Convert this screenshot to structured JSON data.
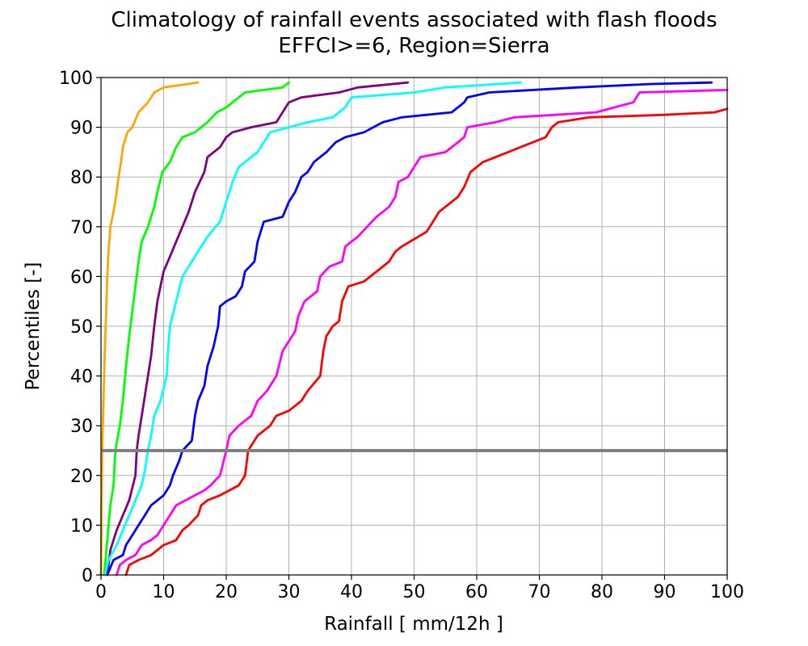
{
  "chart_data": {
    "type": "line",
    "title": "Climatology of rainfall events associated with flash floods",
    "subtitle": "EFFCI>=6, Region=Sierra",
    "xlabel": "Rainfall [ mm/12h ]",
    "ylabel": "Percentiles [-]",
    "xlim": [
      0,
      100
    ],
    "ylim": [
      0,
      100
    ],
    "xticks": [
      0,
      10,
      20,
      30,
      40,
      50,
      60,
      70,
      80,
      90,
      100
    ],
    "yticks": [
      0,
      10,
      20,
      30,
      40,
      50,
      60,
      70,
      80,
      90,
      100
    ],
    "grid": true,
    "reference_line": {
      "y": 25,
      "color": "#808080"
    },
    "series": [
      {
        "color": "#FFA500",
        "points": [
          [
            0.0,
            0
          ],
          [
            0.1,
            15
          ],
          [
            0.2,
            25
          ],
          [
            0.4,
            35
          ],
          [
            0.6,
            45
          ],
          [
            0.8,
            52
          ],
          [
            1.0,
            60
          ],
          [
            1.2,
            65
          ],
          [
            1.5,
            70
          ],
          [
            2.0,
            73
          ],
          [
            2.4,
            76
          ],
          [
            2.8,
            80
          ],
          [
            3.2,
            83
          ],
          [
            3.5,
            86
          ],
          [
            4.2,
            89
          ],
          [
            5.0,
            90
          ],
          [
            6.0,
            93
          ],
          [
            7.5,
            95
          ],
          [
            8.5,
            97
          ],
          [
            10.0,
            98
          ],
          [
            15.5,
            99
          ]
        ]
      },
      {
        "color": "#00FF00",
        "points": [
          [
            0.5,
            0
          ],
          [
            1.0,
            7
          ],
          [
            1.5,
            14
          ],
          [
            2.0,
            18
          ],
          [
            2.3,
            25
          ],
          [
            3.0,
            30
          ],
          [
            3.5,
            35
          ],
          [
            4.0,
            42
          ],
          [
            4.5,
            48
          ],
          [
            5.0,
            53
          ],
          [
            5.5,
            58
          ],
          [
            6.0,
            63
          ],
          [
            6.5,
            67
          ],
          [
            7.5,
            70
          ],
          [
            8.5,
            74
          ],
          [
            9.0,
            77
          ],
          [
            9.8,
            81
          ],
          [
            11.0,
            83
          ],
          [
            12.0,
            86
          ],
          [
            13.0,
            88
          ],
          [
            15.0,
            89
          ],
          [
            17.0,
            91
          ],
          [
            18.5,
            93
          ],
          [
            20.0,
            94
          ],
          [
            23.0,
            97
          ],
          [
            29.0,
            98
          ],
          [
            30.0,
            99
          ]
        ]
      },
      {
        "color": "#800080",
        "points": [
          [
            1.0,
            0
          ],
          [
            1.5,
            5
          ],
          [
            2.5,
            9
          ],
          [
            3.5,
            12
          ],
          [
            4.5,
            15
          ],
          [
            5.5,
            20
          ],
          [
            5.7,
            25
          ],
          [
            6.0,
            28
          ],
          [
            6.5,
            32
          ],
          [
            7.0,
            36
          ],
          [
            7.5,
            40
          ],
          [
            8.0,
            44
          ],
          [
            8.5,
            50
          ],
          [
            9.0,
            55
          ],
          [
            9.5,
            58
          ],
          [
            10.0,
            61
          ],
          [
            11.0,
            64
          ],
          [
            12.0,
            67
          ],
          [
            13.0,
            70
          ],
          [
            14.0,
            73
          ],
          [
            15.0,
            77
          ],
          [
            16.5,
            81
          ],
          [
            17.0,
            84
          ],
          [
            19.0,
            86
          ],
          [
            20.0,
            88
          ],
          [
            21.0,
            89
          ],
          [
            24.0,
            90
          ],
          [
            28.0,
            91
          ],
          [
            30.0,
            95
          ],
          [
            32.0,
            96
          ],
          [
            38.0,
            97
          ],
          [
            41.0,
            98
          ],
          [
            49.0,
            99
          ]
        ]
      },
      {
        "color": "#00FFFF",
        "points": [
          [
            0.6,
            0
          ],
          [
            1.2,
            3
          ],
          [
            2.5,
            6
          ],
          [
            3.5,
            9
          ],
          [
            4.5,
            12
          ],
          [
            5.5,
            15
          ],
          [
            6.5,
            18
          ],
          [
            7.0,
            21
          ],
          [
            7.5,
            25
          ],
          [
            8.0,
            28
          ],
          [
            8.5,
            32
          ],
          [
            9.5,
            35
          ],
          [
            10.5,
            40
          ],
          [
            10.7,
            45
          ],
          [
            11.0,
            50
          ],
          [
            12.0,
            55
          ],
          [
            13.0,
            60
          ],
          [
            14.0,
            62
          ],
          [
            15.5,
            65
          ],
          [
            17.0,
            68
          ],
          [
            19.0,
            71
          ],
          [
            20.0,
            75
          ],
          [
            21.0,
            79
          ],
          [
            22.0,
            82
          ],
          [
            25.0,
            85
          ],
          [
            27.0,
            89
          ],
          [
            30.0,
            90
          ],
          [
            33.0,
            91
          ],
          [
            37.0,
            92
          ],
          [
            39.0,
            94
          ],
          [
            40.0,
            96
          ],
          [
            45.0,
            96.5
          ],
          [
            50.0,
            97
          ],
          [
            55.0,
            98
          ],
          [
            67.0,
            99
          ]
        ]
      },
      {
        "color": "#0000FF",
        "points": [
          [
            1.0,
            0
          ],
          [
            2.0,
            3
          ],
          [
            3.5,
            4
          ],
          [
            4.0,
            6
          ],
          [
            5.0,
            8
          ],
          [
            6.0,
            10
          ],
          [
            7.0,
            12
          ],
          [
            8.0,
            14
          ],
          [
            9.0,
            15
          ],
          [
            10.0,
            16
          ],
          [
            11.0,
            18
          ],
          [
            11.5,
            20
          ],
          [
            12.5,
            23
          ],
          [
            13.0,
            25
          ],
          [
            14.5,
            27
          ],
          [
            15.0,
            32
          ],
          [
            15.5,
            35
          ],
          [
            16.5,
            38
          ],
          [
            17.0,
            42
          ],
          [
            18.0,
            46
          ],
          [
            18.7,
            50
          ],
          [
            19.0,
            54
          ],
          [
            20.0,
            55
          ],
          [
            21.5,
            56
          ],
          [
            22.5,
            58
          ],
          [
            23.0,
            61
          ],
          [
            24.5,
            63
          ],
          [
            25.0,
            67
          ],
          [
            26.0,
            71
          ],
          [
            29.0,
            72
          ],
          [
            30.0,
            75
          ],
          [
            31.0,
            77
          ],
          [
            32.0,
            80
          ],
          [
            33.0,
            81
          ],
          [
            34.0,
            83
          ],
          [
            36.0,
            85
          ],
          [
            37.5,
            87
          ],
          [
            39.0,
            88
          ],
          [
            42.0,
            89
          ],
          [
            45.0,
            91
          ],
          [
            48.0,
            92
          ],
          [
            56.0,
            93
          ],
          [
            58.0,
            95
          ],
          [
            58.5,
            96
          ],
          [
            62.0,
            97
          ],
          [
            76.0,
            98
          ],
          [
            88.0,
            98.7
          ],
          [
            97.5,
            99
          ]
        ]
      },
      {
        "color": "#FF00FF",
        "points": [
          [
            2.5,
            0
          ],
          [
            3.0,
            2
          ],
          [
            4.0,
            3
          ],
          [
            5.5,
            4
          ],
          [
            6.5,
            6
          ],
          [
            8.0,
            7
          ],
          [
            9.0,
            8
          ],
          [
            10.0,
            10
          ],
          [
            11.0,
            12
          ],
          [
            12.0,
            14
          ],
          [
            13.5,
            15
          ],
          [
            15.0,
            16
          ],
          [
            16.5,
            17
          ],
          [
            17.5,
            18
          ],
          [
            19.0,
            20
          ],
          [
            20.0,
            25
          ],
          [
            20.5,
            28
          ],
          [
            22.0,
            30
          ],
          [
            24.0,
            32
          ],
          [
            25.0,
            35
          ],
          [
            26.5,
            37
          ],
          [
            28.0,
            40
          ],
          [
            29.0,
            45
          ],
          [
            31.0,
            49
          ],
          [
            31.5,
            52
          ],
          [
            32.5,
            55
          ],
          [
            34.5,
            57
          ],
          [
            35.0,
            60
          ],
          [
            36.5,
            62
          ],
          [
            38.5,
            63
          ],
          [
            39.0,
            66
          ],
          [
            41.0,
            68
          ],
          [
            42.5,
            70
          ],
          [
            44.0,
            72
          ],
          [
            46.0,
            74
          ],
          [
            47.0,
            76
          ],
          [
            47.5,
            79
          ],
          [
            49.0,
            80
          ],
          [
            50.0,
            82
          ],
          [
            51.0,
            84
          ],
          [
            55.0,
            85
          ],
          [
            57.0,
            87
          ],
          [
            58.0,
            88
          ],
          [
            58.5,
            90
          ],
          [
            63.0,
            91
          ],
          [
            66.0,
            92
          ],
          [
            79.0,
            93
          ],
          [
            82.0,
            94
          ],
          [
            85.0,
            95
          ],
          [
            86.0,
            97
          ],
          [
            100.0,
            97.5
          ]
        ]
      },
      {
        "color": "#FF0000",
        "points": [
          [
            4.0,
            0
          ],
          [
            4.5,
            2
          ],
          [
            6.0,
            3
          ],
          [
            8.0,
            4
          ],
          [
            10.0,
            6
          ],
          [
            12.0,
            7
          ],
          [
            13.0,
            9
          ],
          [
            14.0,
            10
          ],
          [
            15.5,
            12
          ],
          [
            16.0,
            14
          ],
          [
            17.0,
            15
          ],
          [
            19.0,
            16
          ],
          [
            22.0,
            18
          ],
          [
            23.0,
            20
          ],
          [
            23.5,
            25
          ],
          [
            25.0,
            28
          ],
          [
            27.0,
            30
          ],
          [
            28.0,
            32
          ],
          [
            30.0,
            33
          ],
          [
            32.0,
            35
          ],
          [
            33.0,
            37
          ],
          [
            35.0,
            40
          ],
          [
            35.5,
            45
          ],
          [
            36.0,
            48
          ],
          [
            37.0,
            50
          ],
          [
            38.0,
            51
          ],
          [
            38.5,
            55
          ],
          [
            39.5,
            58
          ],
          [
            42.0,
            59
          ],
          [
            45.0,
            62
          ],
          [
            46.0,
            63
          ],
          [
            47.0,
            65
          ],
          [
            48.0,
            66
          ],
          [
            52.0,
            69
          ],
          [
            53.0,
            71
          ],
          [
            54.0,
            73
          ],
          [
            56.0,
            75
          ],
          [
            57.0,
            76
          ],
          [
            58.0,
            78
          ],
          [
            59.0,
            81
          ],
          [
            60.0,
            82
          ],
          [
            61.0,
            83
          ],
          [
            65.0,
            85
          ],
          [
            67.0,
            86
          ],
          [
            69.0,
            87
          ],
          [
            71.0,
            88
          ],
          [
            72.0,
            90
          ],
          [
            73.0,
            91
          ],
          [
            78.0,
            92
          ],
          [
            90.0,
            92.5
          ],
          [
            98.0,
            93
          ],
          [
            100.0,
            93.7
          ]
        ]
      }
    ]
  }
}
